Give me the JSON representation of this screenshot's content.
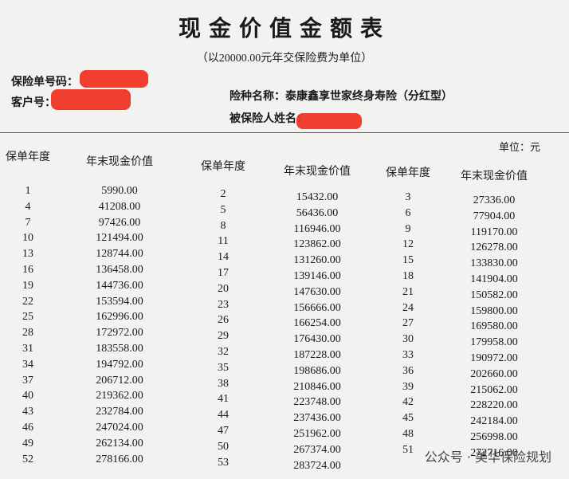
{
  "header": {
    "title": "现金价值金额表",
    "subtitle": "（以20000.00元年交保险费为单位）"
  },
  "fields": {
    "policy_no": "保险单号码：",
    "customer_no": "客户号：",
    "product": "险种名称：泰康鑫享世家终身寿险（分红型）",
    "insured": "被保险人姓名："
  },
  "table": {
    "unit": "单位：元",
    "headers": [
      "保单年度",
      "年末现金价值",
      "保单年度",
      "年末现金价值",
      "保单年度",
      "年末现金价值"
    ],
    "rows": [
      [
        "1",
        "5990.00",
        "2",
        "15432.00",
        "3",
        "27336.00"
      ],
      [
        "4",
        "41208.00",
        "5",
        "56436.00",
        "6",
        "77904.00"
      ],
      [
        "7",
        "97426.00",
        "8",
        "116946.00",
        "9",
        "119170.00"
      ],
      [
        "10",
        "121494.00",
        "11",
        "123862.00",
        "12",
        "126278.00"
      ],
      [
        "13",
        "128744.00",
        "14",
        "131260.00",
        "15",
        "133830.00"
      ],
      [
        "16",
        "136458.00",
        "17",
        "139146.00",
        "18",
        "141904.00"
      ],
      [
        "19",
        "144736.00",
        "20",
        "147630.00",
        "21",
        "150582.00"
      ],
      [
        "22",
        "153594.00",
        "23",
        "156666.00",
        "24",
        "159800.00"
      ],
      [
        "25",
        "162996.00",
        "26",
        "166254.00",
        "27",
        "169580.00"
      ],
      [
        "28",
        "172972.00",
        "29",
        "176430.00",
        "30",
        "179958.00"
      ],
      [
        "31",
        "183558.00",
        "32",
        "187228.00",
        "33",
        "190972.00"
      ],
      [
        "34",
        "194792.00",
        "35",
        "198686.00",
        "36",
        "202660.00"
      ],
      [
        "37",
        "206712.00",
        "38",
        "210846.00",
        "39",
        "215062.00"
      ],
      [
        "40",
        "219362.00",
        "41",
        "223748.00",
        "42",
        "228220.00"
      ],
      [
        "43",
        "232784.00",
        "44",
        "237436.00",
        "45",
        "242184.00"
      ],
      [
        "46",
        "247024.00",
        "47",
        "251962.00",
        "48",
        "256998.00"
      ],
      [
        "49",
        "262134.00",
        "50",
        "267374.00",
        "51",
        "272716.00"
      ],
      [
        "52",
        "278166.00",
        "53",
        "283724.00"
      ]
    ]
  },
  "watermark": "公众号 · 美华保险规划"
}
